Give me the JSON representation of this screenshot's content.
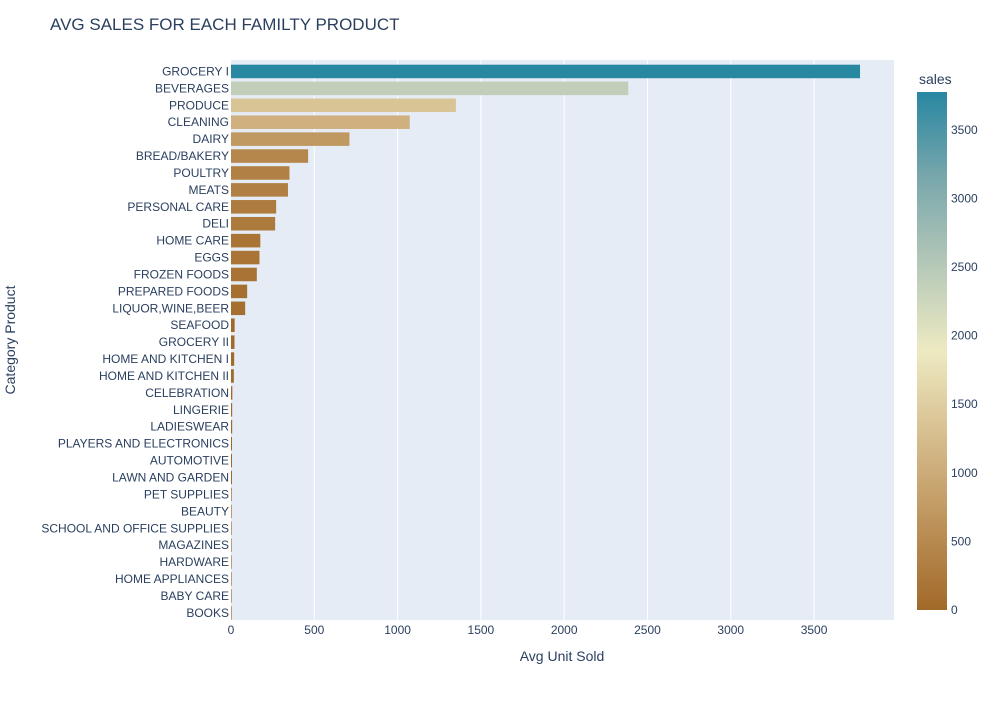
{
  "chart_data": {
    "type": "bar",
    "orientation": "horizontal",
    "title": "AVG SALES FOR EACH FAMILTY PRODUCT",
    "xlabel": "Avg Unit Sold",
    "ylabel": "Category Product",
    "xlim": [
      0,
      3980
    ],
    "x_ticks": [
      0,
      500,
      1000,
      1500,
      2000,
      2500,
      3000,
      3500
    ],
    "grid": true,
    "colorbar": {
      "title": "sales",
      "range": [
        0,
        3776
      ],
      "ticks": [
        0,
        500,
        1000,
        1500,
        2000,
        2500,
        3000,
        3500
      ],
      "colorscale": [
        "#a16928",
        "#bd925a",
        "#d6bd8d",
        "#edeac2",
        "#b5c8b8",
        "#79a7ac",
        "#2887a1"
      ]
    },
    "categories": [
      "GROCERY I",
      "BEVERAGES",
      "PRODUCE",
      "CLEANING",
      "DAIRY",
      "BREAD/BAKERY",
      "POULTRY",
      "MEATS",
      "PERSONAL CARE",
      "DELI",
      "HOME CARE",
      "EGGS",
      "FROZEN FOODS",
      "PREPARED FOODS",
      "LIQUOR,WINE,BEER",
      "SEAFOOD",
      "GROCERY II",
      "HOME AND KITCHEN I",
      "HOME AND KITCHEN II",
      "CELEBRATION",
      "LINGERIE",
      "LADIESWEAR",
      "PLAYERS AND ELECTRONICS",
      "AUTOMOTIVE",
      "LAWN AND GARDEN",
      "PET SUPPLIES",
      "BEAUTY",
      "SCHOOL AND OFFICE SUPPLIES",
      "MAGAZINES",
      "HARDWARE",
      "HOME APPLIANCES",
      "BABY CARE",
      "BOOKS"
    ],
    "values": [
      3776,
      2385,
      1350,
      1073,
      711,
      463,
      351,
      342,
      271,
      265,
      176,
      171,
      155,
      97,
      85,
      22,
      21,
      19,
      17,
      8,
      7,
      7,
      6,
      6,
      6,
      4,
      3.7,
      2.9,
      2.9,
      1.2,
      0.5,
      0.1,
      0.05
    ]
  }
}
